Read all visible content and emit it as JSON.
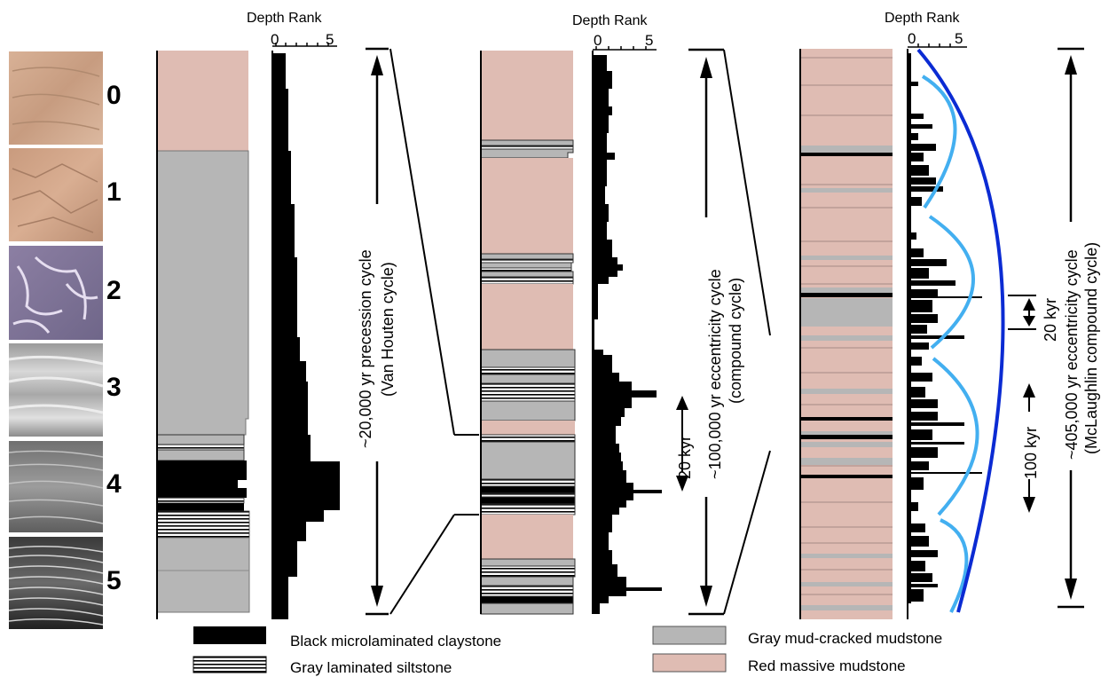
{
  "headers": {
    "depth_rank_1": "Depth Rank",
    "depth_rank_2": "Depth Rank",
    "depth_rank_3": "Depth Rank",
    "tick_0": "0",
    "tick_5": "5"
  },
  "depth_ranks": [
    "0",
    "1",
    "2",
    "3",
    "4",
    "5"
  ],
  "cycles": {
    "precession": "~20,000 yr precession cycle",
    "precession_sub": "(Van Houten cycle)",
    "eccentricity100": "~100,000 yr eccentricity cycle",
    "eccentricity100_sub": "(compound cycle)",
    "eccentricity405": "~405,000 yr eccentricity cycle",
    "eccentricity405_sub": "(McLaughlin compound cycle)"
  },
  "spans": {
    "kyr20_a": "20 kyr",
    "kyr20_b": "20 kyr",
    "kyr100": "100 kyr"
  },
  "legend": {
    "black": "Black microlaminated claystone",
    "gray_laminated": "Gray laminated siltstone",
    "gray_mud": "Gray mud-cracked mudstone",
    "red": "Red massive mudstone"
  },
  "colors": {
    "red_mudstone": "#dfbcb3",
    "gray_mudstone": "#b6b6b6",
    "black": "#000000",
    "light_blue": "#43aff0",
    "dark_blue": "#0b2bd3"
  },
  "photos": [
    "red-mudstone-photo",
    "red-mudstone-photo",
    "gray-mudcracked-photo",
    "gray-siltstone-photo",
    "laminated-siltstone-photo",
    "black-microlaminated-photo"
  ]
}
